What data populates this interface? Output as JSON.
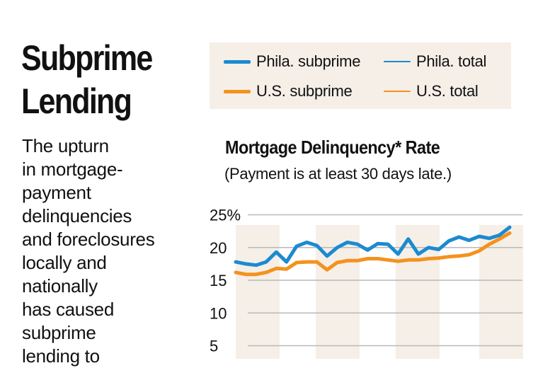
{
  "headline": [
    "Subprime",
    "Lending"
  ],
  "description": [
    "The upturn",
    "in mortgage-",
    "payment",
    "delinquencies",
    "and foreclosures",
    "locally and",
    "nationally",
    "has caused",
    "subprime",
    "lending to"
  ],
  "legend": [
    {
      "label": "Phila. subprime",
      "color": "#1c8ad1",
      "weight": "thick"
    },
    {
      "label": "Phila. total",
      "color": "#1c8ad1",
      "weight": "thin"
    },
    {
      "label": "U.S. subprime",
      "color": "#f4921d",
      "weight": "thick"
    },
    {
      "label": "U.S. total",
      "color": "#f4921d",
      "weight": "thin"
    }
  ],
  "chart_data": {
    "type": "line",
    "title": "Mortgage Delinquency* Rate",
    "subtitle": "(Payment is at least 30 days late.)",
    "y_ticks": [
      "25%",
      "20",
      "15",
      "10",
      "5"
    ],
    "y_tick_values": [
      25,
      20,
      15,
      10,
      5
    ],
    "ylim": [
      3,
      27
    ],
    "grid": true,
    "legend_position": "top",
    "series": [
      {
        "name": "Phila. subprime",
        "color": "#1c8ad1",
        "values": [
          17.8,
          17.5,
          17.3,
          17.8,
          19.3,
          17.8,
          20.2,
          20.8,
          20.3,
          18.7,
          20.0,
          20.8,
          20.5,
          19.6,
          20.6,
          20.5,
          19.0,
          21.3,
          19.0,
          20.0,
          19.7,
          21.0,
          21.6,
          21.1,
          21.7,
          21.4,
          21.9,
          23.1
        ]
      },
      {
        "name": "U.S. subprime",
        "color": "#f4921d",
        "values": [
          16.2,
          15.9,
          15.9,
          16.2,
          16.8,
          16.7,
          17.7,
          17.8,
          17.8,
          16.6,
          17.7,
          18.0,
          18.0,
          18.3,
          18.3,
          18.1,
          17.9,
          18.1,
          18.1,
          18.3,
          18.4,
          18.6,
          18.7,
          18.9,
          19.5,
          20.5,
          21.3,
          22.2
        ]
      }
    ]
  },
  "colors": {
    "legend_bg": "#f5efe8",
    "band_fill": "#f5efe8",
    "gridline": "#b9b9b9"
  }
}
